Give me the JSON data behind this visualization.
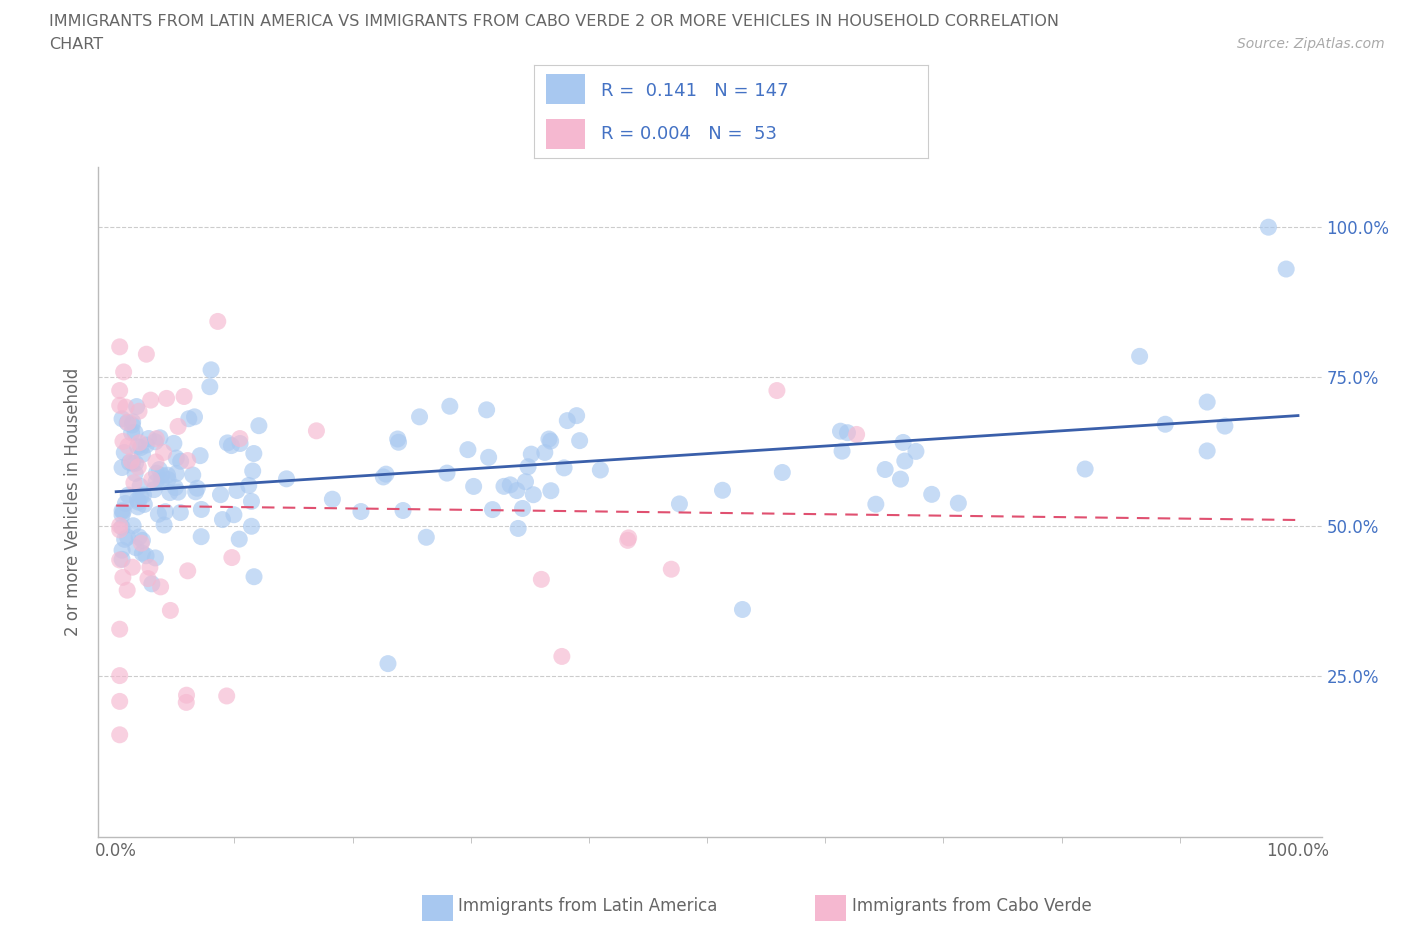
{
  "title_line1": "IMMIGRANTS FROM LATIN AMERICA VS IMMIGRANTS FROM CABO VERDE 2 OR MORE VEHICLES IN HOUSEHOLD CORRELATION",
  "title_line2": "CHART",
  "source": "Source: ZipAtlas.com",
  "ylabel": "2 or more Vehicles in Household",
  "grid_color": "#cccccc",
  "background_color": "#ffffff",
  "latin_america_color": "#a8c8f0",
  "cabo_verde_color": "#f5b8d0",
  "latin_america_line_color": "#3a5faa",
  "cabo_verde_line_color": "#e05070",
  "legend_R1": "0.141",
  "legend_N1": "147",
  "legend_R2": "0.004",
  "legend_N2": "53",
  "tick_color": "#4472c4",
  "axis_color": "#bbbbbb",
  "label_color": "#666666"
}
